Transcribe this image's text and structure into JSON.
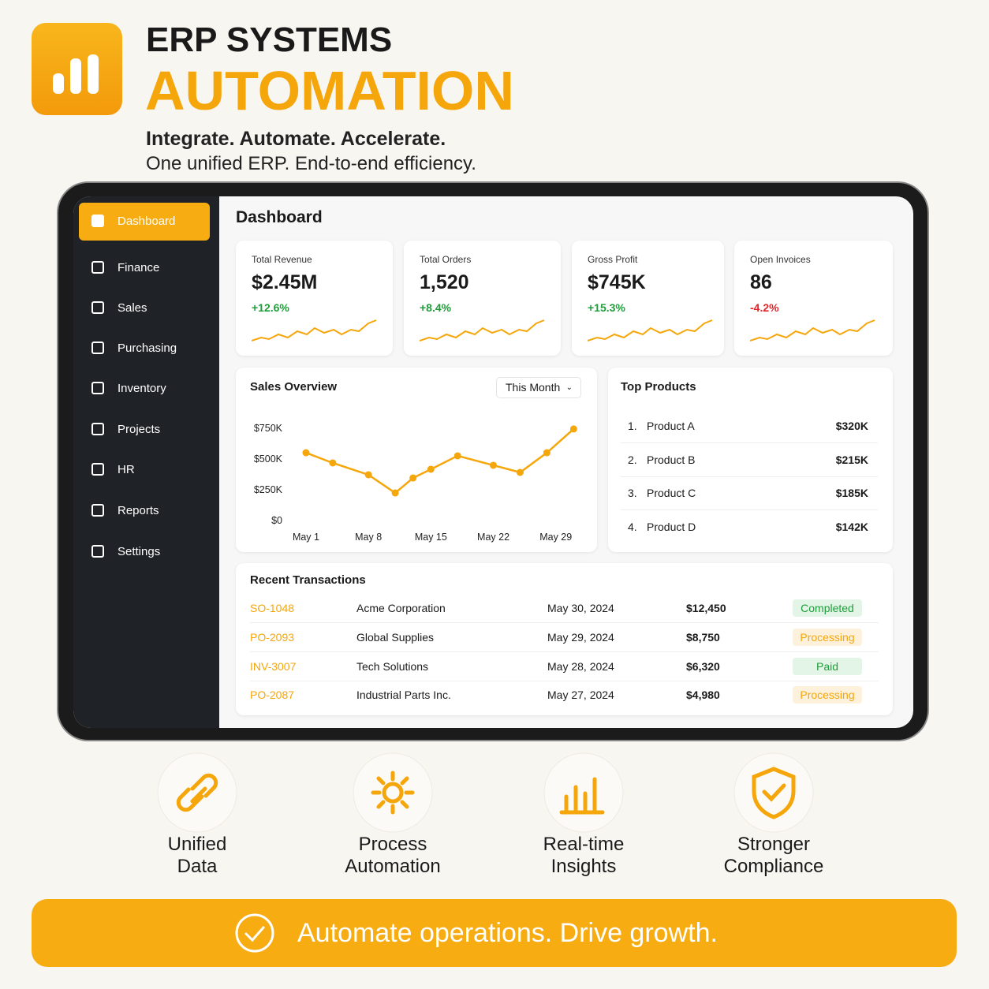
{
  "header": {
    "title": "ERP SYSTEMS",
    "headline": "AUTOMATION",
    "tagline": "Integrate. Automate. Accelerate.",
    "subtitle": "One unified ERP. End-to-end efficiency."
  },
  "sidebar": {
    "items": [
      "Dashboard",
      "Finance",
      "Sales",
      "Purchasing",
      "Inventory",
      "Projects",
      "HR",
      "Reports",
      "Settings"
    ]
  },
  "dashboard": {
    "title": "Dashboard",
    "kpis": [
      {
        "label": "Total Revenue",
        "value": "$2.45M",
        "change": "+12.6%"
      },
      {
        "label": "Total Orders",
        "value": "1,520",
        "change": "+8.4%"
      },
      {
        "label": "Gross Profit",
        "value": "$745K",
        "change": "+15.3%"
      },
      {
        "label": "Open Invoices",
        "value": "86",
        "change": "-4.2%"
      }
    ],
    "top_products": {
      "title": "Top Products",
      "rows": [
        [
          "1.",
          "Product A",
          "$320K"
        ],
        [
          "2.",
          "Product B",
          "$215K"
        ],
        [
          "3.",
          "Product C",
          "$185K"
        ],
        [
          "4.",
          "Product D",
          "$142K"
        ]
      ]
    },
    "transactions": {
      "title": "Recent Transactions",
      "rows": [
        [
          "SO-1048",
          "Acme Corporation",
          "May 30, 2024",
          "$12,450",
          "Completed"
        ],
        [
          "PO-2093",
          "Global Supplies",
          "May 29, 2024",
          "$8,750",
          "Processing"
        ],
        [
          "INV-3007",
          "Tech Solutions",
          "May 28, 2024",
          "$6,320",
          "Paid"
        ],
        [
          "PO-2087",
          "Industrial Parts Inc.",
          "May 27, 2024",
          "$4,980",
          "Processing"
        ]
      ]
    }
  },
  "chart_data": {
    "type": "line",
    "title": "Sales Overview",
    "filter": "This Month",
    "x": [
      1,
      4,
      8,
      11,
      13,
      15,
      18,
      22,
      25,
      28,
      31
    ],
    "xlim": [
      -0.5,
      31.5
    ],
    "xticks": [
      {
        "value": 1,
        "label": "May 1"
      },
      {
        "value": 8,
        "label": "May 8"
      },
      {
        "value": 15,
        "label": "May 15"
      },
      {
        "value": 22,
        "label": "May 22"
      },
      {
        "value": 29,
        "label": "May 29"
      }
    ],
    "ylim": [
      0,
      750000
    ],
    "yticks": [
      {
        "value": 0,
        "label": "$0"
      },
      {
        "value": 250000,
        "label": "$250K"
      },
      {
        "value": 500000,
        "label": "$500K"
      },
      {
        "value": 750000,
        "label": "$750K"
      }
    ],
    "series": [
      {
        "color": "#f5a60a",
        "values": [
          551000,
          468000,
          372000,
          224000,
          346000,
          417000,
          526000,
          449000,
          391000,
          551000,
          744000
        ]
      }
    ]
  },
  "features": [
    {
      "label": [
        "Unified",
        "Data"
      ]
    },
    {
      "label": [
        "Process",
        "Automation"
      ]
    },
    {
      "label": [
        "Real-time",
        "Insights"
      ]
    },
    {
      "label": [
        "Stronger",
        "Compliance"
      ]
    }
  ],
  "footer": {
    "cta": "Automate operations. Drive growth."
  }
}
